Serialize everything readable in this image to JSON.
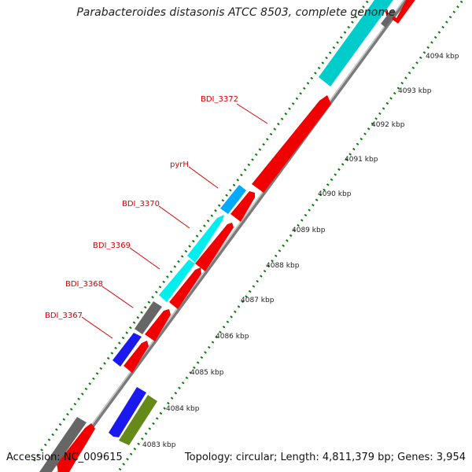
{
  "title": "Parabacteroides distasonis ATCC 8503, complete genome",
  "footer": {
    "accession": "Accession: NC_009615",
    "summary": "Topology: circular; Length: 4,811,379 bp; Genes: 3,954"
  },
  "colors": {
    "forward_cds": "#f00000",
    "reverse_cds": "#1a1aee",
    "cyan": "#00e5e5",
    "light_blue": "#00aaff",
    "gray": "#666666",
    "olive": "#668a1a",
    "backbone": "#7a7a7a",
    "tick": "#0a7a0a",
    "label": "#d40000"
  },
  "gene_labels": [
    {
      "name": "BDI_3372"
    },
    {
      "name": "pyrH"
    },
    {
      "name": "BDI_3370"
    },
    {
      "name": "BDI_3369"
    },
    {
      "name": "BDI_3368"
    },
    {
      "name": "BDI_3367"
    }
  ],
  "scale_labels": [
    "4094 kbp",
    "4093 kbp",
    "4092 kbp",
    "4091 kbp",
    "4090 kbp",
    "4089 kbp",
    "4088 kbp",
    "4087 kbp",
    "4086 kbp",
    "4085 kbp",
    "4084 kbp",
    "4083 kbp"
  ]
}
